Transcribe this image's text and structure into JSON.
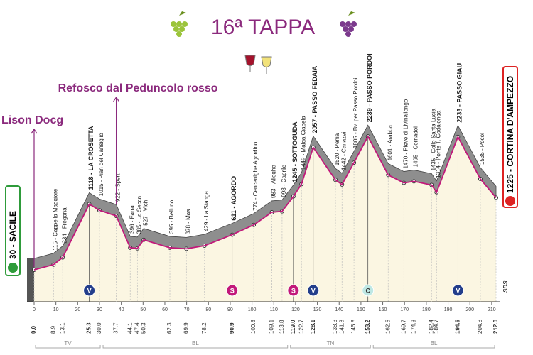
{
  "chart_data": {
    "type": "profile",
    "title": "16ª TAPPA",
    "annotations": [
      {
        "text": "Lison Docg",
        "km": 0
      },
      {
        "text": "Refosco dal Peduncolo rosso",
        "km": 37.7
      }
    ],
    "line_color": "#c2187a",
    "band_color": "#8e8e8e",
    "fill_color": "#fbf6e2",
    "xlim": [
      0,
      212
    ],
    "ylim": [
      0,
      2500
    ],
    "xticks": [
      0,
      10,
      20,
      30,
      40,
      50,
      60,
      70,
      80,
      90,
      100,
      110,
      120,
      130,
      140,
      150,
      160,
      170,
      180,
      190,
      200,
      210
    ],
    "regions": [
      {
        "label": "TV",
        "from": 0,
        "to": 31
      },
      {
        "label": "BL",
        "from": 31,
        "to": 117
      },
      {
        "label": "TN",
        "from": 117,
        "to": 155
      },
      {
        "label": "BL",
        "from": 155,
        "to": 212
      }
    ],
    "logo": "SDS",
    "points": [
      {
        "km": 0,
        "km_label": "0.0",
        "altitude": 30,
        "label": "30 - SACILE",
        "flag": "start"
      },
      {
        "km": 8.9,
        "km_label": "8.9",
        "altitude": 115,
        "label": "115 - Cappella Maggiore"
      },
      {
        "km": 13.1,
        "km_label": "13.1",
        "altitude": 234,
        "label": "234 - Fregona"
      },
      {
        "km": 25.3,
        "km_label": "25.3",
        "altitude": 1118,
        "label": "1118 - LA CROSETTA",
        "bold": true,
        "badge": "V"
      },
      {
        "km": 30.0,
        "km_label": "30.0",
        "altitude": 1015,
        "label": "1015 - Pian del Cansiglio"
      },
      {
        "km": 37.7,
        "km_label": "37.7",
        "altitude": 922,
        "label": "922 - Spert"
      },
      {
        "km": 44.1,
        "km_label": "44.1",
        "altitude": 396,
        "label": "396 - Farra"
      },
      {
        "km": 47.4,
        "km_label": "47.4",
        "altitude": 385,
        "label": "385 - La Secca"
      },
      {
        "km": 50.3,
        "km_label": "50.3",
        "altitude": 527,
        "label": "527 - Vich"
      },
      {
        "km": 62.3,
        "km_label": "62.3",
        "altitude": 395,
        "label": "395 - Belluno"
      },
      {
        "km": 69.9,
        "km_label": "69.9",
        "altitude": 378,
        "label": "378 - Mas"
      },
      {
        "km": 78.2,
        "km_label": "78.2",
        "altitude": 429,
        "label": "429 - La Stanga"
      },
      {
        "km": 90.9,
        "km_label": "90.9",
        "altitude": 611,
        "label": "611 - AGORDO",
        "bold": true,
        "badge": "S"
      },
      {
        "km": 100.8,
        "km_label": "100.8",
        "altitude": 774,
        "label": "774 - Cencenighe Agordino"
      },
      {
        "km": 109.1,
        "km_label": "109.1",
        "altitude": 983,
        "label": "983 - Alleghe"
      },
      {
        "km": 113.8,
        "km_label": "113.8",
        "altitude": 998,
        "label": "998 - Caprile"
      },
      {
        "km": 119.0,
        "km_label": "119.0",
        "altitude": 1245,
        "label": "1245 - SOTTOGUDA",
        "bold": true,
        "badge": "S"
      },
      {
        "km": 122.7,
        "km_label": "122.7",
        "altitude": 1449,
        "label": "1449 - Malga Ciapela"
      },
      {
        "km": 128.1,
        "km_label": "128.1",
        "altitude": 2057,
        "label": "2057 - PASSO FEDAIA",
        "bold": true,
        "badge": "V"
      },
      {
        "km": 138.3,
        "km_label": "138.3",
        "altitude": 1520,
        "label": "1520 - Penia"
      },
      {
        "km": 141.3,
        "km_label": "141.3",
        "altitude": 1442,
        "label": "1442 - Canazei"
      },
      {
        "km": 146.8,
        "km_label": "146.8",
        "altitude": 1805,
        "label": "1805 - Bv. per Passo Pordoi"
      },
      {
        "km": 153.2,
        "km_label": "153.2",
        "altitude": 2239,
        "label": "2239 - PASSO PORDOI",
        "bold": true,
        "badge": "C"
      },
      {
        "km": 162.5,
        "km_label": "162.5",
        "altitude": 1601,
        "label": "1601 - Arabba"
      },
      {
        "km": 169.7,
        "km_label": "169.7",
        "altitude": 1470,
        "label": "1470 - Pieve di Livinallongo"
      },
      {
        "km": 174.3,
        "km_label": "174.3",
        "altitude": 1495,
        "label": "1495 - Cernadoi"
      },
      {
        "km": 182.4,
        "km_label": "182.4",
        "altitude": 1435,
        "label": "1435 - Colle Santa Lucia"
      },
      {
        "km": 184.7,
        "km_label": "184.7",
        "altitude": 1314,
        "label": "1314 - Ponte T. Codalonga"
      },
      {
        "km": 194.5,
        "km_label": "194.5",
        "altitude": 2233,
        "label": "2233 - PASSO GIAU",
        "bold": true,
        "badge": "V"
      },
      {
        "km": 204.8,
        "km_label": "204.8",
        "altitude": 1535,
        "label": "1535 - Pocol"
      },
      {
        "km": 212.0,
        "km_label": "212.0",
        "altitude": 1225,
        "label": "1225 - CORTINA D'AMPEZZO",
        "flag": "finish"
      }
    ]
  }
}
